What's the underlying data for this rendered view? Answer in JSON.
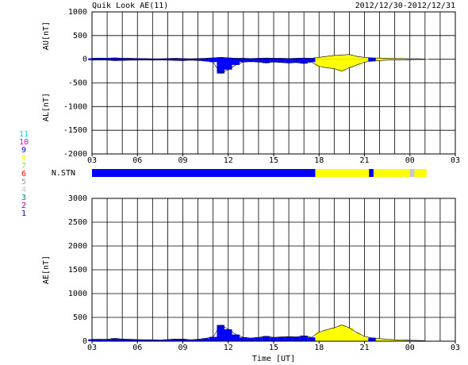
{
  "chart_data": [
    {
      "type": "area",
      "title": "Quik Look AE(11)",
      "subtitle": "2012/12/30-2012/12/31",
      "x": [
        3,
        3.5,
        4,
        4.5,
        5,
        5.5,
        6,
        6.5,
        7,
        7.5,
        8,
        8.5,
        9,
        9.5,
        10,
        10.5,
        11,
        11.5,
        12,
        12.5,
        13,
        13.5,
        14,
        14.5,
        15,
        15.5,
        16,
        16.5,
        17,
        17.5,
        18,
        18.5,
        19,
        19.5,
        20,
        20.5,
        21,
        21.5,
        22,
        22.5,
        23,
        23.5,
        24,
        24.5,
        25
      ],
      "series": [
        {
          "label": "AU[nT]",
          "values": [
            20,
            25,
            20,
            30,
            20,
            20,
            15,
            15,
            10,
            10,
            15,
            20,
            15,
            10,
            15,
            20,
            30,
            40,
            30,
            20,
            20,
            15,
            20,
            25,
            20,
            20,
            15,
            20,
            25,
            20,
            40,
            60,
            80,
            90,
            100,
            60,
            40,
            30,
            25,
            20,
            15,
            15,
            10,
            10,
            5
          ]
        },
        {
          "label": "AL[nT]",
          "values": [
            -20,
            -15,
            -20,
            -30,
            -25,
            -20,
            -20,
            -15,
            -20,
            -15,
            -20,
            -25,
            -30,
            -20,
            -25,
            -40,
            -60,
            -300,
            -220,
            -120,
            -60,
            -50,
            -60,
            -80,
            -60,
            -70,
            -80,
            -70,
            -90,
            -60,
            -150,
            -180,
            -200,
            -250,
            -180,
            -120,
            -60,
            -40,
            -30,
            -20,
            -15,
            -10,
            -10,
            -5,
            -5
          ]
        }
      ],
      "xlim": [
        3,
        27
      ],
      "xticks": [
        {
          "value": 3,
          "label": "03"
        },
        {
          "value": 6,
          "label": "06"
        },
        {
          "value": 9,
          "label": "09"
        },
        12,
        15,
        18,
        21,
        {
          "value": 24,
          "label": "00"
        },
        {
          "value": 27,
          "label": "03"
        }
      ],
      "ylim": [
        -2000,
        1000
      ],
      "yticks": [
        1000,
        500,
        0,
        -500,
        -1000,
        -1500,
        -2000
      ],
      "grid": true
    },
    {
      "type": "area",
      "xlabel": "Time [UT]",
      "x": [
        3,
        3.5,
        4,
        4.5,
        5,
        5.5,
        6,
        6.5,
        7,
        7.5,
        8,
        8.5,
        9,
        9.5,
        10,
        10.5,
        11,
        11.5,
        12,
        12.5,
        13,
        13.5,
        14,
        14.5,
        15,
        15.5,
        16,
        16.5,
        17,
        17.5,
        18,
        18.5,
        19,
        19.5,
        20,
        20.5,
        21,
        21.5,
        22,
        22.5,
        23,
        23.5,
        24,
        24.5,
        25
      ],
      "series": [
        {
          "label": "AE[nT]",
          "values": [
            40,
            40,
            40,
            60,
            45,
            40,
            35,
            30,
            30,
            25,
            35,
            45,
            45,
            30,
            40,
            60,
            90,
            340,
            250,
            140,
            80,
            65,
            80,
            105,
            80,
            90,
            95,
            90,
            115,
            80,
            190,
            240,
            280,
            340,
            280,
            180,
            100,
            70,
            55,
            40,
            30,
            25,
            20,
            15,
            10
          ]
        }
      ],
      "xlim": [
        3,
        27
      ],
      "xticks": [
        {
          "value": 3,
          "label": "03"
        },
        {
          "value": 6,
          "label": "06"
        },
        {
          "value": 9,
          "label": "09"
        },
        12,
        15,
        18,
        21,
        {
          "value": 24,
          "label": "00"
        },
        {
          "value": 27,
          "label": "03"
        }
      ],
      "ylim": [
        0,
        3000
      ],
      "yticks": [
        0,
        500,
        1000,
        1500,
        2000,
        2500,
        3000
      ],
      "grid": true
    }
  ],
  "stations": {
    "label": "N.STN",
    "segments": [
      {
        "start": 3,
        "end": 17.75,
        "count": 9
      },
      {
        "start": 17.75,
        "end": 21.3,
        "count": 8
      },
      {
        "start": 21.3,
        "end": 21.6,
        "count": 9
      },
      {
        "start": 21.6,
        "end": 24,
        "count": 8
      },
      {
        "start": 24,
        "end": 24.3,
        "count": 4
      },
      {
        "start": 24.3,
        "end": 25.1,
        "count": 8
      }
    ],
    "legend": [
      {
        "label": "11",
        "color": "#00e0e0"
      },
      {
        "label": "10",
        "color": "#e000e0"
      },
      {
        "label": "9",
        "color": "#0000ff"
      },
      {
        "label": "8",
        "color": "#ffff00"
      },
      {
        "label": "7",
        "color": "#80e060"
      },
      {
        "label": "6",
        "color": "#ff0000"
      },
      {
        "label": "5",
        "color": "#a0a0a0"
      },
      {
        "label": "4",
        "color": "#c8c8c8"
      },
      {
        "label": "3",
        "color": "#008080"
      },
      {
        "label": "2",
        "color": "#a000a0"
      },
      {
        "label": "1",
        "color": "#0000c0"
      }
    ]
  }
}
